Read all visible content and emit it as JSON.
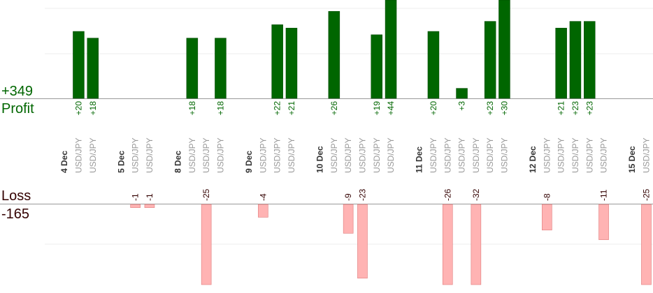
{
  "colors": {
    "profit_bar": "#006600",
    "profit_bar_edge": "#004400",
    "loss_bar": "#ffb3b3",
    "loss_bar_edge": "#e07a7a",
    "profit_text": "#006600",
    "loss_text": "#330000",
    "date_text": "#333333",
    "pair_text": "#999999",
    "axis": "#999999",
    "grid": "#eeeeee"
  },
  "summary": {
    "profit_total": "+349",
    "profit_label": "Profit",
    "loss_label": "Loss",
    "loss_total": "-165"
  },
  "chart_data": {
    "type": "bar",
    "description_units": "pips per trade",
    "profit_scale_max": 27,
    "loss_scale_max": 25,
    "categories": [
      {
        "kind": "date",
        "label": "4 Dec"
      },
      {
        "kind": "trade",
        "pair": "USD/JPY",
        "value": 20
      },
      {
        "kind": "trade",
        "pair": "USD/JPY",
        "value": 18
      },
      {
        "kind": "gap"
      },
      {
        "kind": "date",
        "label": "5 Dec"
      },
      {
        "kind": "trade",
        "pair": "USD/JPY",
        "value": -1
      },
      {
        "kind": "trade",
        "pair": "USD/JPY",
        "value": -1
      },
      {
        "kind": "gap"
      },
      {
        "kind": "date",
        "label": "8 Dec"
      },
      {
        "kind": "trade",
        "pair": "USD/JPY",
        "value": 18
      },
      {
        "kind": "trade",
        "pair": "USD/JPY",
        "value": -25
      },
      {
        "kind": "trade",
        "pair": "USD/JPY",
        "value": 18
      },
      {
        "kind": "gap"
      },
      {
        "kind": "date",
        "label": "9 Dec"
      },
      {
        "kind": "trade",
        "pair": "USD/JPY",
        "value": -4
      },
      {
        "kind": "trade",
        "pair": "USD/JPY",
        "value": 22
      },
      {
        "kind": "trade",
        "pair": "USD/JPY",
        "value": 21
      },
      {
        "kind": "gap"
      },
      {
        "kind": "date",
        "label": "10 Dec"
      },
      {
        "kind": "trade",
        "pair": "USD/JPY",
        "value": 26
      },
      {
        "kind": "trade",
        "pair": "USD/JPY",
        "value": -9
      },
      {
        "kind": "trade",
        "pair": "USD/JPY",
        "value": -23
      },
      {
        "kind": "trade",
        "pair": "USD/JPY",
        "value": 19
      },
      {
        "kind": "trade",
        "pair": "USD/JPY",
        "value": 44
      },
      {
        "kind": "gap"
      },
      {
        "kind": "date",
        "label": "11 Dec"
      },
      {
        "kind": "trade",
        "pair": "USD/JPY",
        "value": 20
      },
      {
        "kind": "trade",
        "pair": "USD/JPY",
        "value": -26
      },
      {
        "kind": "trade",
        "pair": "USD/JPY",
        "value": 3
      },
      {
        "kind": "trade",
        "pair": "USD/JPY",
        "value": -32
      },
      {
        "kind": "trade",
        "pair": "USD/JPY",
        "value": 23
      },
      {
        "kind": "trade",
        "pair": "USD/JPY",
        "value": 30
      },
      {
        "kind": "gap"
      },
      {
        "kind": "date",
        "label": "12 Dec"
      },
      {
        "kind": "trade",
        "pair": "USD/JPY",
        "value": -8
      },
      {
        "kind": "trade",
        "pair": "USD/JPY",
        "value": 21
      },
      {
        "kind": "trade",
        "pair": "USD/JPY",
        "value": 23
      },
      {
        "kind": "trade",
        "pair": "USD/JPY",
        "value": 23
      },
      {
        "kind": "trade",
        "pair": "USD/JPY",
        "value": -11
      },
      {
        "kind": "gap"
      },
      {
        "kind": "date",
        "label": "15 Dec"
      },
      {
        "kind": "trade",
        "pair": "USD/JPY",
        "value": -25
      }
    ]
  }
}
